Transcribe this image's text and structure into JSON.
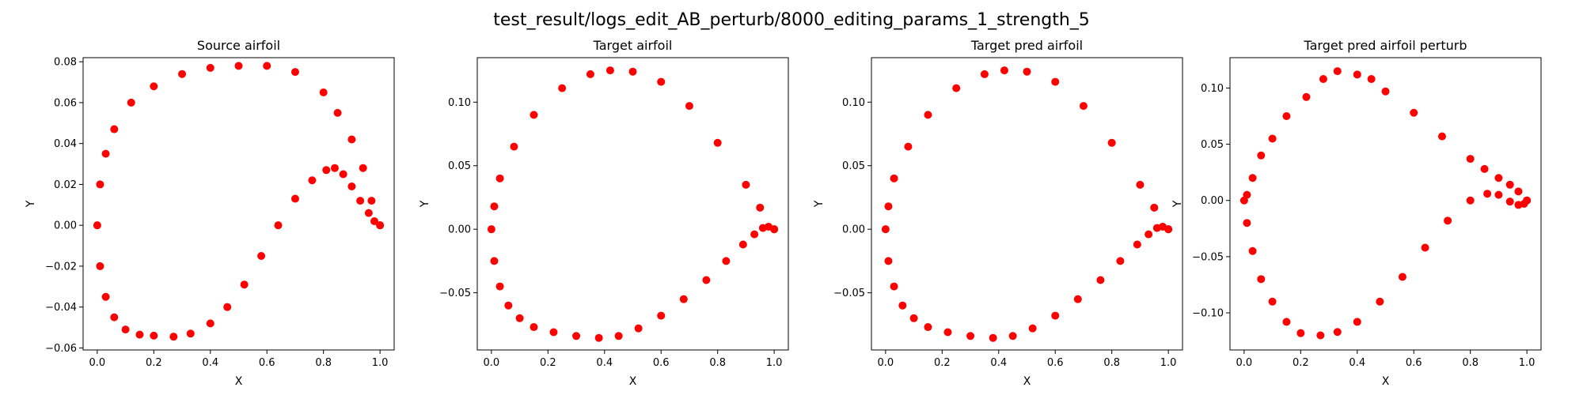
{
  "figure": {
    "suptitle": "test_result/logs_edit_AB_perturb/8000_editing_params_1_strength_5",
    "marker_color": "#ff0000"
  },
  "chart_data": [
    {
      "type": "scatter",
      "title": "Source airfoil",
      "xlabel": "X",
      "ylabel": "Y",
      "xlim": [
        -0.05,
        1.05
      ],
      "ylim": [
        -0.061,
        0.082
      ],
      "xticks": [
        0.0,
        0.2,
        0.4,
        0.6,
        0.8,
        1.0
      ],
      "xtick_labels": [
        "0.0",
        "0.2",
        "0.4",
        "0.6",
        "0.8",
        "1.0"
      ],
      "yticks": [
        -0.06,
        -0.04,
        -0.02,
        0.0,
        0.02,
        0.04,
        0.06,
        0.08
      ],
      "ytick_labels": [
        "−0.06",
        "−0.04",
        "−0.02",
        "0.00",
        "0.02",
        "0.04",
        "0.06",
        "0.08"
      ],
      "series": [
        {
          "color": "#ff0000",
          "marker": "o",
          "x": [
            1.0,
            0.97,
            0.94,
            0.9,
            0.85,
            0.8,
            0.7,
            0.6,
            0.5,
            0.4,
            0.3,
            0.2,
            0.12,
            0.06,
            0.03,
            0.01,
            0.0,
            0.01,
            0.03,
            0.06,
            0.1,
            0.15,
            0.2,
            0.27,
            0.33,
            0.4,
            0.46,
            0.52,
            0.58,
            0.64,
            0.7,
            0.76,
            0.81,
            0.84,
            0.87,
            0.9,
            0.93,
            0.96,
            0.98,
            1.0
          ],
          "y": [
            0.0,
            0.012,
            0.028,
            0.042,
            0.055,
            0.065,
            0.075,
            0.078,
            0.078,
            0.077,
            0.074,
            0.068,
            0.06,
            0.047,
            0.035,
            0.02,
            0.0,
            -0.02,
            -0.035,
            -0.045,
            -0.051,
            -0.0535,
            -0.054,
            -0.0545,
            -0.053,
            -0.048,
            -0.04,
            -0.029,
            -0.015,
            0.0,
            0.013,
            0.022,
            0.027,
            0.028,
            0.025,
            0.019,
            0.012,
            0.006,
            0.002,
            0.0
          ]
        }
      ]
    },
    {
      "type": "scatter",
      "title": "Target airfoil",
      "xlabel": "X",
      "ylabel": "Y",
      "xlim": [
        -0.05,
        1.05
      ],
      "ylim": [
        -0.095,
        0.135
      ],
      "xticks": [
        0.0,
        0.2,
        0.4,
        0.6,
        0.8,
        1.0
      ],
      "xtick_labels": [
        "0.0",
        "0.2",
        "0.4",
        "0.6",
        "0.8",
        "1.0"
      ],
      "yticks": [
        -0.05,
        0.0,
        0.05,
        0.1
      ],
      "ytick_labels": [
        "−0.05",
        "0.00",
        "0.05",
        "0.10"
      ],
      "series": [
        {
          "color": "#ff0000",
          "marker": "o",
          "x": [
            1.0,
            0.95,
            0.9,
            0.8,
            0.7,
            0.6,
            0.5,
            0.42,
            0.35,
            0.25,
            0.15,
            0.08,
            0.03,
            0.01,
            0.0,
            0.01,
            0.03,
            0.06,
            0.1,
            0.15,
            0.22,
            0.3,
            0.38,
            0.45,
            0.52,
            0.6,
            0.68,
            0.76,
            0.83,
            0.89,
            0.93,
            0.96,
            0.98,
            1.0
          ],
          "y": [
            0.0,
            0.017,
            0.035,
            0.068,
            0.097,
            0.116,
            0.124,
            0.125,
            0.122,
            0.111,
            0.09,
            0.065,
            0.04,
            0.018,
            0.0,
            -0.025,
            -0.045,
            -0.06,
            -0.07,
            -0.077,
            -0.081,
            -0.084,
            -0.0855,
            -0.084,
            -0.078,
            -0.068,
            -0.055,
            -0.04,
            -0.025,
            -0.012,
            -0.004,
            0.001,
            0.002,
            0.0
          ]
        }
      ]
    },
    {
      "type": "scatter",
      "title": "Target pred airfoil",
      "xlabel": "X",
      "ylabel": "Y",
      "xlim": [
        -0.05,
        1.05
      ],
      "ylim": [
        -0.095,
        0.135
      ],
      "xticks": [
        0.0,
        0.2,
        0.4,
        0.6,
        0.8,
        1.0
      ],
      "xtick_labels": [
        "0.0",
        "0.2",
        "0.4",
        "0.6",
        "0.8",
        "1.0"
      ],
      "yticks": [
        -0.05,
        0.0,
        0.05,
        0.1
      ],
      "ytick_labels": [
        "−0.05",
        "0.00",
        "0.05",
        "0.10"
      ],
      "series": [
        {
          "color": "#ff0000",
          "marker": "o",
          "x": [
            1.0,
            0.95,
            0.9,
            0.8,
            0.7,
            0.6,
            0.5,
            0.42,
            0.35,
            0.25,
            0.15,
            0.08,
            0.03,
            0.01,
            0.0,
            0.01,
            0.03,
            0.06,
            0.1,
            0.15,
            0.22,
            0.3,
            0.38,
            0.45,
            0.52,
            0.6,
            0.68,
            0.76,
            0.83,
            0.89,
            0.93,
            0.96,
            0.98,
            1.0
          ],
          "y": [
            0.0,
            0.017,
            0.035,
            0.068,
            0.097,
            0.116,
            0.124,
            0.125,
            0.122,
            0.111,
            0.09,
            0.065,
            0.04,
            0.018,
            0.0,
            -0.025,
            -0.045,
            -0.06,
            -0.07,
            -0.077,
            -0.081,
            -0.084,
            -0.0855,
            -0.084,
            -0.078,
            -0.068,
            -0.055,
            -0.04,
            -0.025,
            -0.012,
            -0.004,
            0.001,
            0.002,
            0.0
          ]
        }
      ]
    },
    {
      "type": "scatter",
      "title": "Target pred airfoil perturb",
      "xlabel": "X",
      "ylabel": "Y",
      "xlim": [
        -0.05,
        1.05
      ],
      "ylim": [
        -0.133,
        0.127
      ],
      "xticks": [
        0.0,
        0.2,
        0.4,
        0.6,
        0.8,
        1.0
      ],
      "xtick_labels": [
        "0.0",
        "0.2",
        "0.4",
        "0.6",
        "0.8",
        "1.0"
      ],
      "yticks": [
        -0.1,
        -0.05,
        0.0,
        0.05,
        0.1
      ],
      "ytick_labels": [
        "−0.10",
        "−0.05",
        "0.00",
        "0.05",
        "0.10"
      ],
      "series": [
        {
          "color": "#ff0000",
          "marker": "o",
          "x": [
            1.0,
            0.97,
            0.94,
            0.9,
            0.85,
            0.8,
            0.7,
            0.6,
            0.5,
            0.45,
            0.4,
            0.33,
            0.28,
            0.22,
            0.15,
            0.1,
            0.06,
            0.03,
            0.01,
            0.0,
            0.01,
            0.03,
            0.06,
            0.1,
            0.15,
            0.2,
            0.27,
            0.33,
            0.4,
            0.48,
            0.56,
            0.64,
            0.72,
            0.8,
            0.86,
            0.9,
            0.94,
            0.97,
            0.99,
            1.0
          ],
          "y": [
            0.0,
            0.008,
            0.014,
            0.02,
            0.028,
            0.037,
            0.057,
            0.078,
            0.097,
            0.108,
            0.112,
            0.115,
            0.108,
            0.092,
            0.075,
            0.055,
            0.04,
            0.02,
            0.005,
            0.0,
            -0.02,
            -0.045,
            -0.07,
            -0.09,
            -0.108,
            -0.118,
            -0.12,
            -0.117,
            -0.108,
            -0.09,
            -0.068,
            -0.042,
            -0.018,
            0.0,
            0.006,
            0.005,
            -0.001,
            -0.004,
            -0.003,
            0.0
          ]
        }
      ]
    }
  ]
}
